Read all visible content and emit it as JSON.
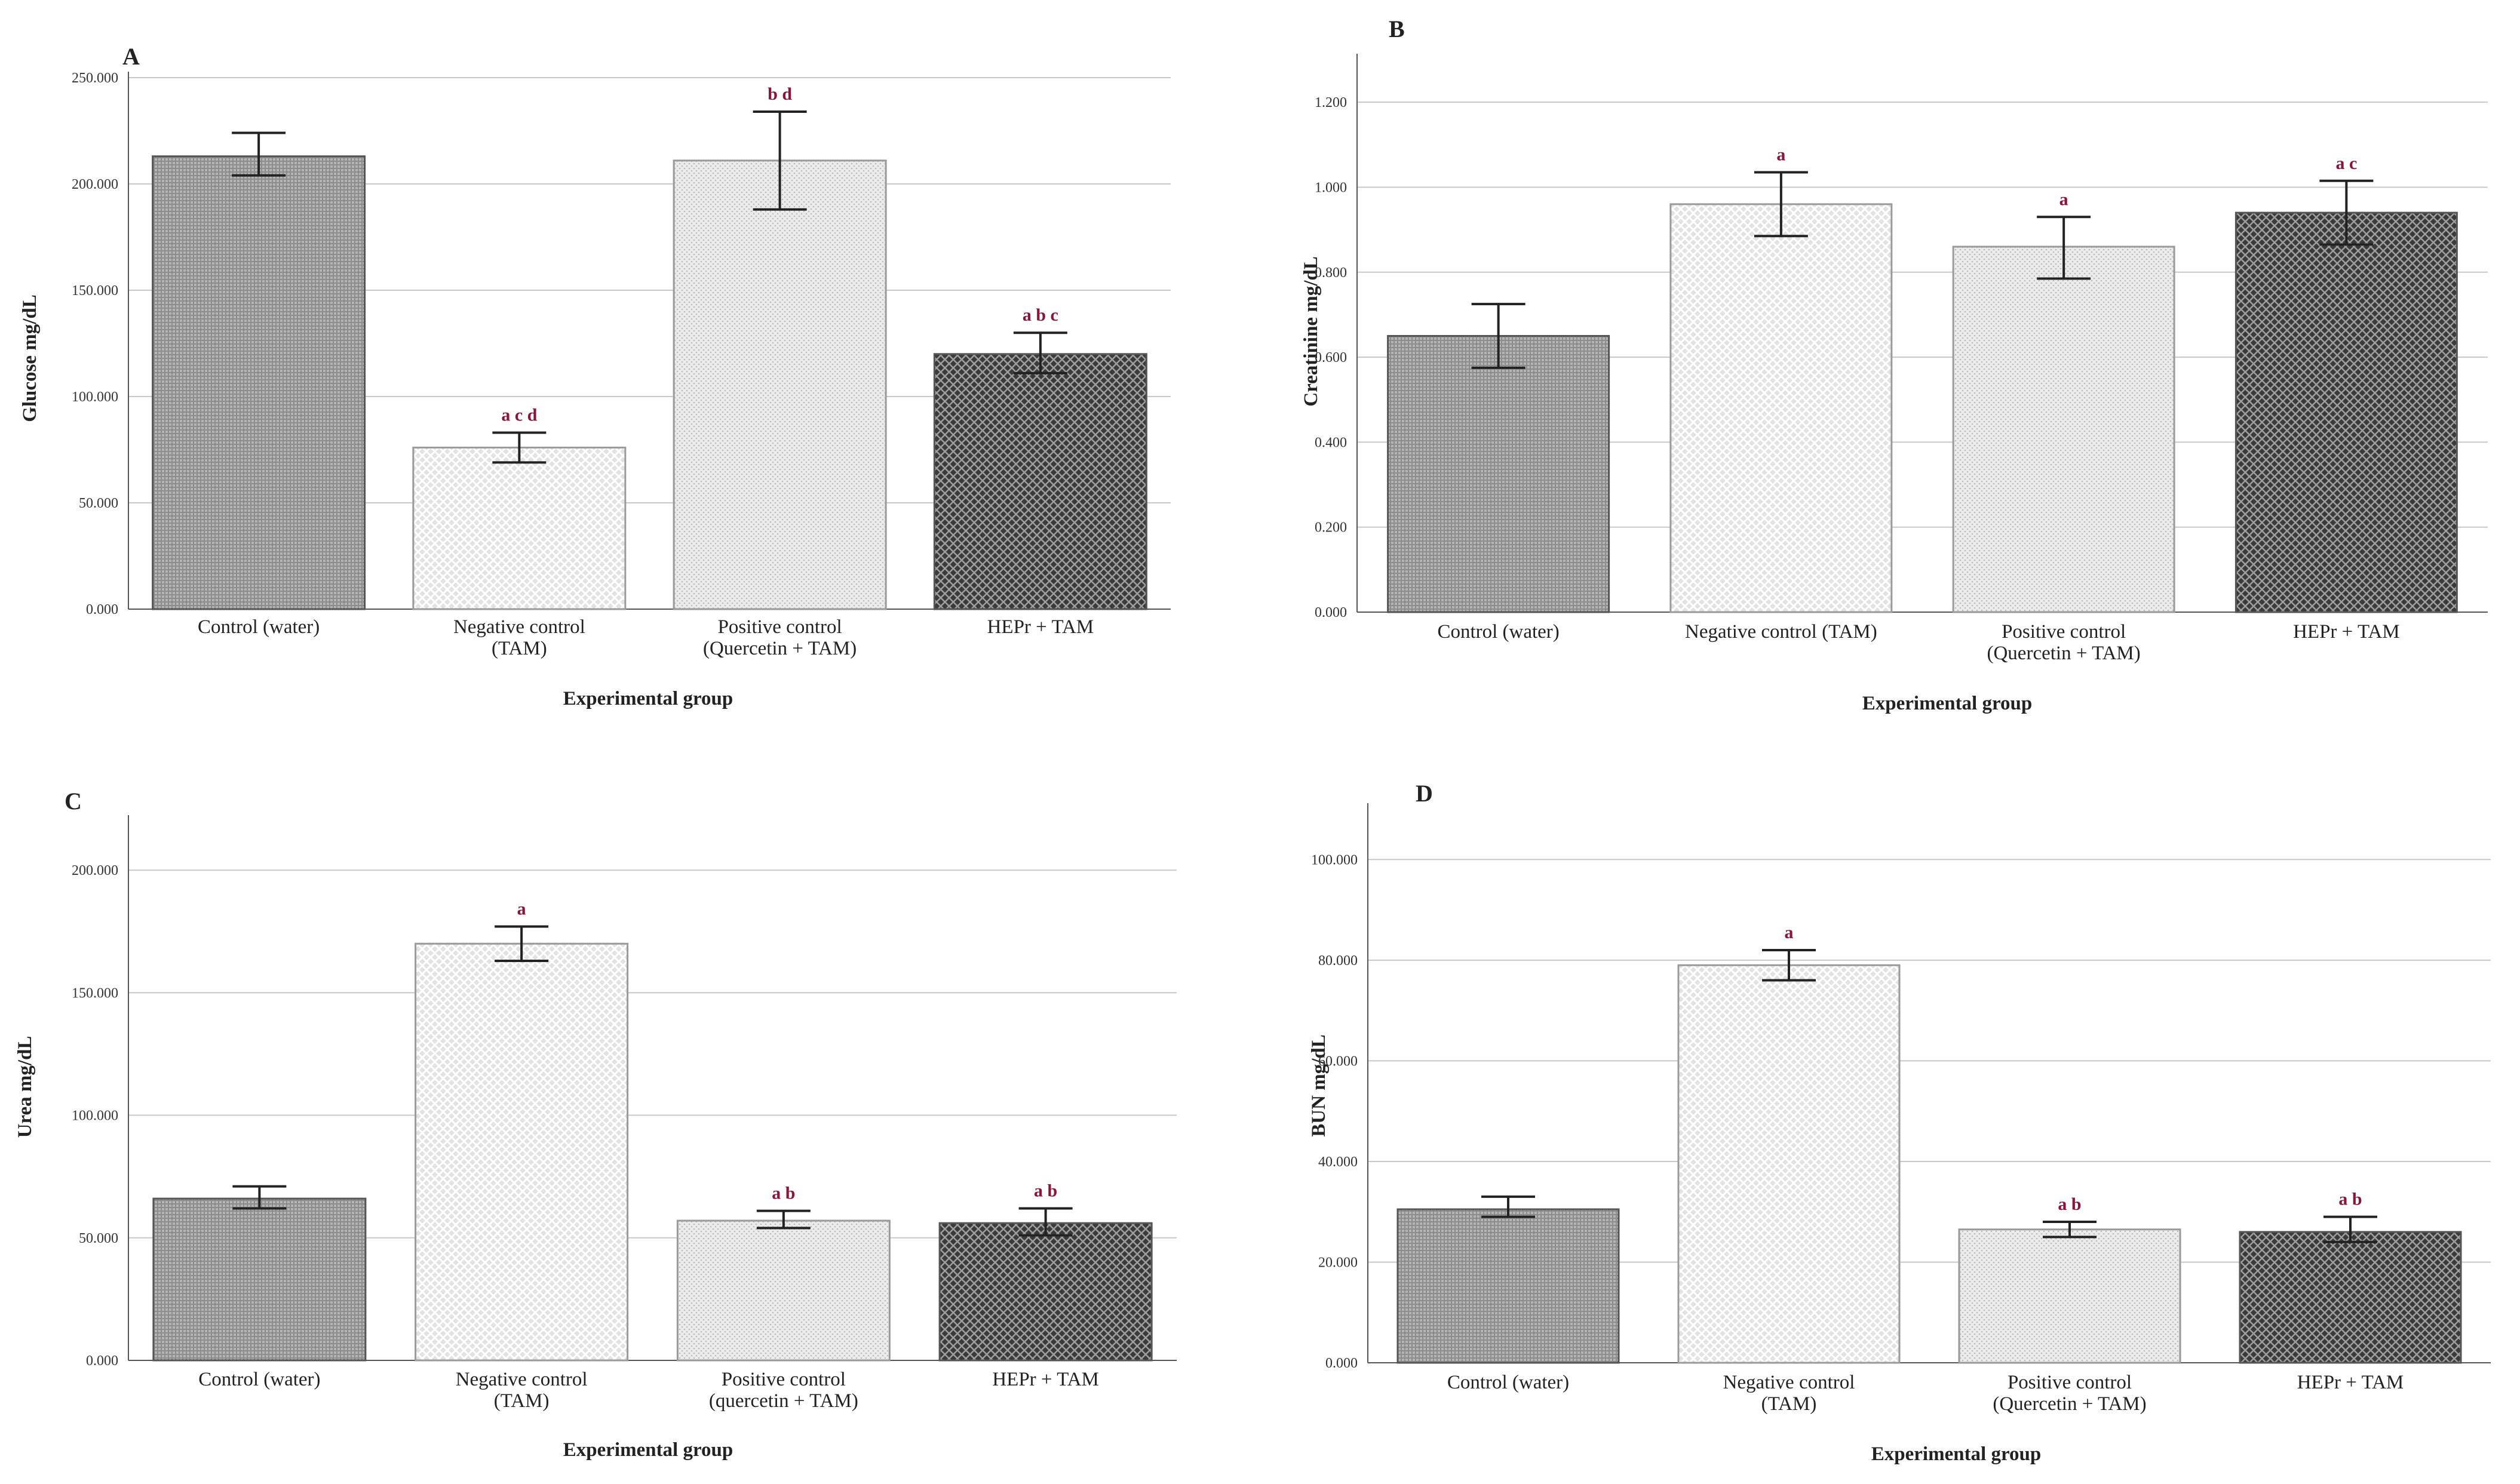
{
  "chart_data": [
    {
      "panel": "A",
      "type": "bar",
      "ylabel": "Glucose mg/dL",
      "xlabel": "Experimental group",
      "ylim": [
        0,
        250
      ],
      "yticks": [
        "0.000",
        "50.000",
        "100.000",
        "150.000",
        "200.000",
        "250.000"
      ],
      "categories": [
        [
          "Control (water)"
        ],
        [
          "Negative control",
          "(TAM)"
        ],
        [
          "Positive control",
          "(Quercetin + TAM)"
        ],
        [
          "HEPr + TAM"
        ]
      ],
      "values": [
        213,
        76,
        211,
        120
      ],
      "err_low": [
        204,
        69,
        188,
        111
      ],
      "err_high": [
        224,
        83,
        234,
        130
      ],
      "sig": [
        "",
        "a c d",
        "b d",
        "a b c"
      ],
      "patterns": [
        "pat-grid-dark",
        "pat-cross-light",
        "pat-dots-light",
        "pat-check-dark"
      ]
    },
    {
      "panel": "B",
      "type": "bar",
      "ylabel": "Creatinine mg/dL",
      "xlabel": "Experimental group",
      "ylim": [
        0,
        1.3
      ],
      "yticks": [
        "0.000",
        "0.200",
        "0.400",
        "0.600",
        "0.800",
        "1.000",
        "1.200"
      ],
      "categories": [
        [
          "Control (water)"
        ],
        [
          "Negative control (TAM)"
        ],
        [
          "Positive control",
          "(Quercetin + TAM)"
        ],
        [
          "HEPr + TAM"
        ]
      ],
      "values": [
        0.65,
        0.96,
        0.86,
        0.94
      ],
      "err_low": [
        0.575,
        0.885,
        0.785,
        0.865
      ],
      "err_high": [
        0.725,
        1.035,
        0.93,
        1.015
      ],
      "sig": [
        "",
        "a",
        "a",
        "a c"
      ],
      "patterns": [
        "pat-grid-dark",
        "pat-cross-light",
        "pat-dots-light",
        "pat-check-dark"
      ]
    },
    {
      "panel": "C",
      "type": "bar",
      "ylabel": "Urea mg/dL",
      "xlabel": "Experimental group",
      "ylim": [
        0,
        220
      ],
      "yticks": [
        "0.000",
        "50.000",
        "100.000",
        "150.000",
        "200.000"
      ],
      "categories": [
        [
          "Control (water)"
        ],
        [
          "Negative control",
          "(TAM)"
        ],
        [
          "Positive control",
          "(quercetin + TAM)"
        ],
        [
          "HEPr + TAM"
        ]
      ],
      "values": [
        66,
        170,
        57,
        56
      ],
      "err_low": [
        62,
        163,
        54,
        51
      ],
      "err_high": [
        71,
        177,
        61,
        62
      ],
      "sig": [
        "",
        "a",
        "a b",
        "a b"
      ],
      "patterns": [
        "pat-grid-dark",
        "pat-cross-light",
        "pat-dots-light",
        "pat-check-dark"
      ]
    },
    {
      "panel": "D",
      "type": "bar",
      "ylabel": "BUN mg/dL",
      "xlabel": "Experimental group",
      "ylim": [
        0,
        110
      ],
      "yticks": [
        "0.000",
        "20.000",
        "40.000",
        "60.000",
        "80.000",
        "100.000"
      ],
      "categories": [
        [
          "Control (water)"
        ],
        [
          "Negative control",
          "(TAM)"
        ],
        [
          "Positive control",
          "(Quercetin + TAM)"
        ],
        [
          "HEPr + TAM"
        ]
      ],
      "values": [
        30.5,
        79,
        26.5,
        26
      ],
      "err_low": [
        29,
        76,
        25,
        24
      ],
      "err_high": [
        33,
        82,
        28,
        29
      ],
      "sig": [
        "",
        "a",
        "a b",
        "a b"
      ],
      "patterns": [
        "pat-grid-dark",
        "pat-cross-light",
        "pat-dots-light",
        "pat-check-dark"
      ]
    }
  ]
}
